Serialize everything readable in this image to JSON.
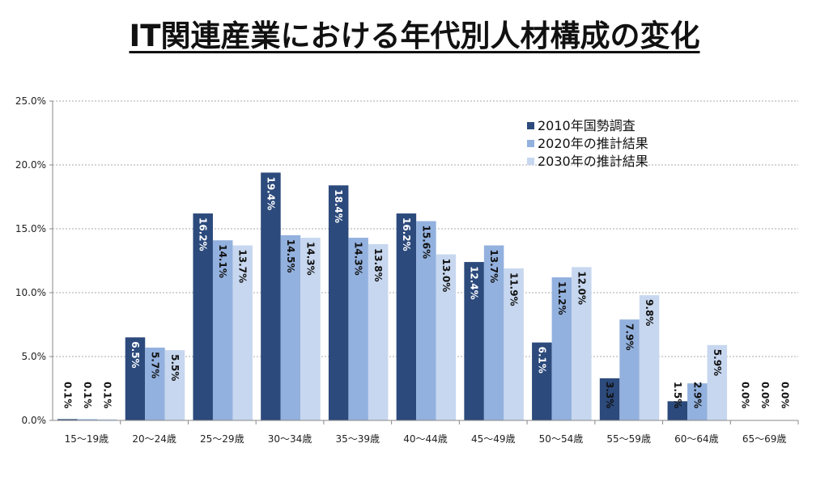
{
  "chart_data": {
    "type": "bar",
    "title": "IT関連産業における年代別人材構成の変化",
    "xlabel": "",
    "ylabel": "",
    "ylim": [
      0,
      25
    ],
    "yticks": [
      "0.0%",
      "5.0%",
      "10.0%",
      "15.0%",
      "20.0%",
      "25.0%"
    ],
    "grid": true,
    "legend_position": "top-right",
    "categories": [
      "15〜19歳",
      "20〜24歳",
      "25〜29歳",
      "30〜34歳",
      "35〜39歳",
      "40〜44歳",
      "45〜49歳",
      "50〜54歳",
      "55〜59歳",
      "60〜64歳",
      "65〜69歳"
    ],
    "series": [
      {
        "name": "2010年国勢調査",
        "color": "#2c4a7c",
        "label_color": "#ffffff",
        "values": [
          0.1,
          6.5,
          16.2,
          19.4,
          18.4,
          16.2,
          12.4,
          6.1,
          3.3,
          1.5,
          0.0
        ]
      },
      {
        "name": "2020年の推計結果",
        "color": "#93b1de",
        "label_color": "#111111",
        "values": [
          0.1,
          5.7,
          14.1,
          14.5,
          14.3,
          15.6,
          13.7,
          11.2,
          7.9,
          2.9,
          0.0
        ]
      },
      {
        "name": "2030年の推計結果",
        "color": "#c7d7ef",
        "label_color": "#111111",
        "values": [
          0.1,
          5.5,
          13.7,
          14.3,
          13.8,
          13.0,
          11.9,
          12.0,
          9.8,
          5.9,
          0.0
        ]
      }
    ]
  }
}
